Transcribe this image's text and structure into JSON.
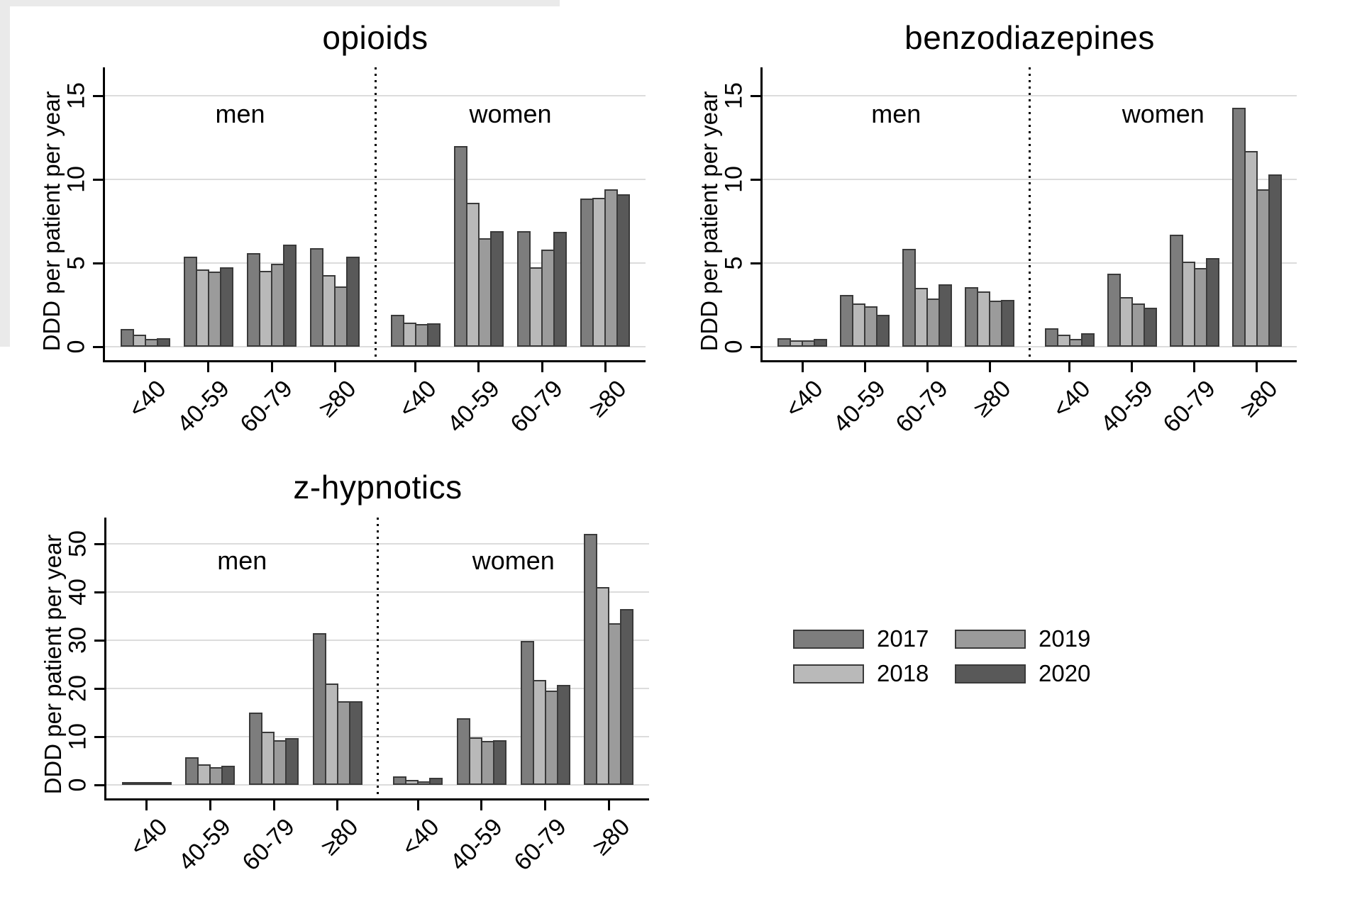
{
  "figure_title": "",
  "axis": {
    "y_title": "DDD per patient per year",
    "section_labels": {
      "left": "men",
      "right": "women"
    },
    "age_categories": [
      "<40",
      "40-59",
      "60-79",
      "≥80"
    ]
  },
  "legend": {
    "items": [
      {
        "label": "2017",
        "color": "#7d7d7d"
      },
      {
        "label": "2018",
        "color": "#b9b9b9"
      },
      {
        "label": "2019",
        "color": "#9b9b9b"
      },
      {
        "label": "2020",
        "color": "#595959"
      }
    ],
    "columns": [
      [
        "2017",
        "2018"
      ],
      [
        "2019",
        "2020"
      ]
    ]
  },
  "chart_data": [
    {
      "id": "opioids",
      "type": "bar",
      "title": "opioids",
      "ylabel": "DDD per patient per year",
      "ylim": [
        0,
        15
      ],
      "yticks": [
        0,
        5,
        10,
        15
      ],
      "grid": true,
      "sections": [
        "men",
        "women"
      ],
      "categories": [
        "<40",
        "40-59",
        "60-79",
        "≥80"
      ],
      "series": [
        {
          "name": "2017",
          "men": [
            1.05,
            5.4,
            5.6,
            5.9
          ],
          "women": [
            1.9,
            12.0,
            6.9,
            8.85
          ]
        },
        {
          "name": "2018",
          "men": [
            0.7,
            4.6,
            4.55,
            4.3
          ],
          "women": [
            1.45,
            8.6,
            4.75,
            8.9
          ]
        },
        {
          "name": "2019",
          "men": [
            0.45,
            4.5,
            4.95,
            3.6
          ],
          "women": [
            1.35,
            6.5,
            5.8,
            9.4
          ]
        },
        {
          "name": "2020",
          "men": [
            0.5,
            4.75,
            6.1,
            5.4
          ],
          "women": [
            1.4,
            6.9,
            6.85,
            9.1
          ]
        }
      ]
    },
    {
      "id": "benzodiazepines",
      "type": "bar",
      "title": "benzodiazepines",
      "ylabel": "DDD per patient per year",
      "ylim": [
        0,
        15
      ],
      "yticks": [
        0,
        5,
        10,
        15
      ],
      "grid": true,
      "sections": [
        "men",
        "women"
      ],
      "categories": [
        "<40",
        "40-59",
        "60-79",
        "≥80"
      ],
      "series": [
        {
          "name": "2017",
          "men": [
            0.5,
            3.1,
            5.85,
            3.55
          ],
          "women": [
            1.1,
            4.35,
            6.7,
            14.3
          ]
        },
        {
          "name": "2018",
          "men": [
            0.4,
            2.6,
            3.5,
            3.3
          ],
          "women": [
            0.7,
            2.95,
            5.1,
            11.7
          ]
        },
        {
          "name": "2019",
          "men": [
            0.38,
            2.4,
            2.9,
            2.75
          ],
          "women": [
            0.45,
            2.6,
            4.7,
            9.4
          ]
        },
        {
          "name": "2020",
          "men": [
            0.45,
            1.9,
            3.75,
            2.8
          ],
          "women": [
            0.8,
            2.35,
            5.3,
            10.3
          ]
        }
      ]
    },
    {
      "id": "z-hypnotics",
      "type": "bar",
      "title": "z-hypnotics",
      "ylabel": "DDD per patient per year",
      "ylim": [
        0,
        50
      ],
      "yticks": [
        0,
        10,
        20,
        30,
        40,
        50
      ],
      "grid": true,
      "sections": [
        "men",
        "women"
      ],
      "categories": [
        "<40",
        "40-59",
        "60-79",
        "≥80"
      ],
      "series": [
        {
          "name": "2017",
          "men": [
            0.35,
            5.7,
            15.0,
            31.5
          ],
          "women": [
            1.8,
            13.8,
            29.8,
            52.0
          ]
        },
        {
          "name": "2018",
          "men": [
            0.25,
            4.3,
            11.0,
            21.0
          ],
          "women": [
            1.0,
            9.8,
            21.7,
            41.0
          ]
        },
        {
          "name": "2019",
          "men": [
            0.2,
            3.7,
            9.3,
            17.3
          ],
          "women": [
            0.7,
            9.1,
            19.5,
            33.5
          ]
        },
        {
          "name": "2020",
          "men": [
            0.3,
            3.9,
            9.7,
            17.3
          ],
          "women": [
            1.4,
            9.2,
            20.7,
            36.5
          ]
        }
      ]
    }
  ],
  "colors": {
    "gridline": "#dcdcdc",
    "axis": "#000000",
    "bar_border": "#3a3a3a",
    "background": "#ffffff"
  }
}
